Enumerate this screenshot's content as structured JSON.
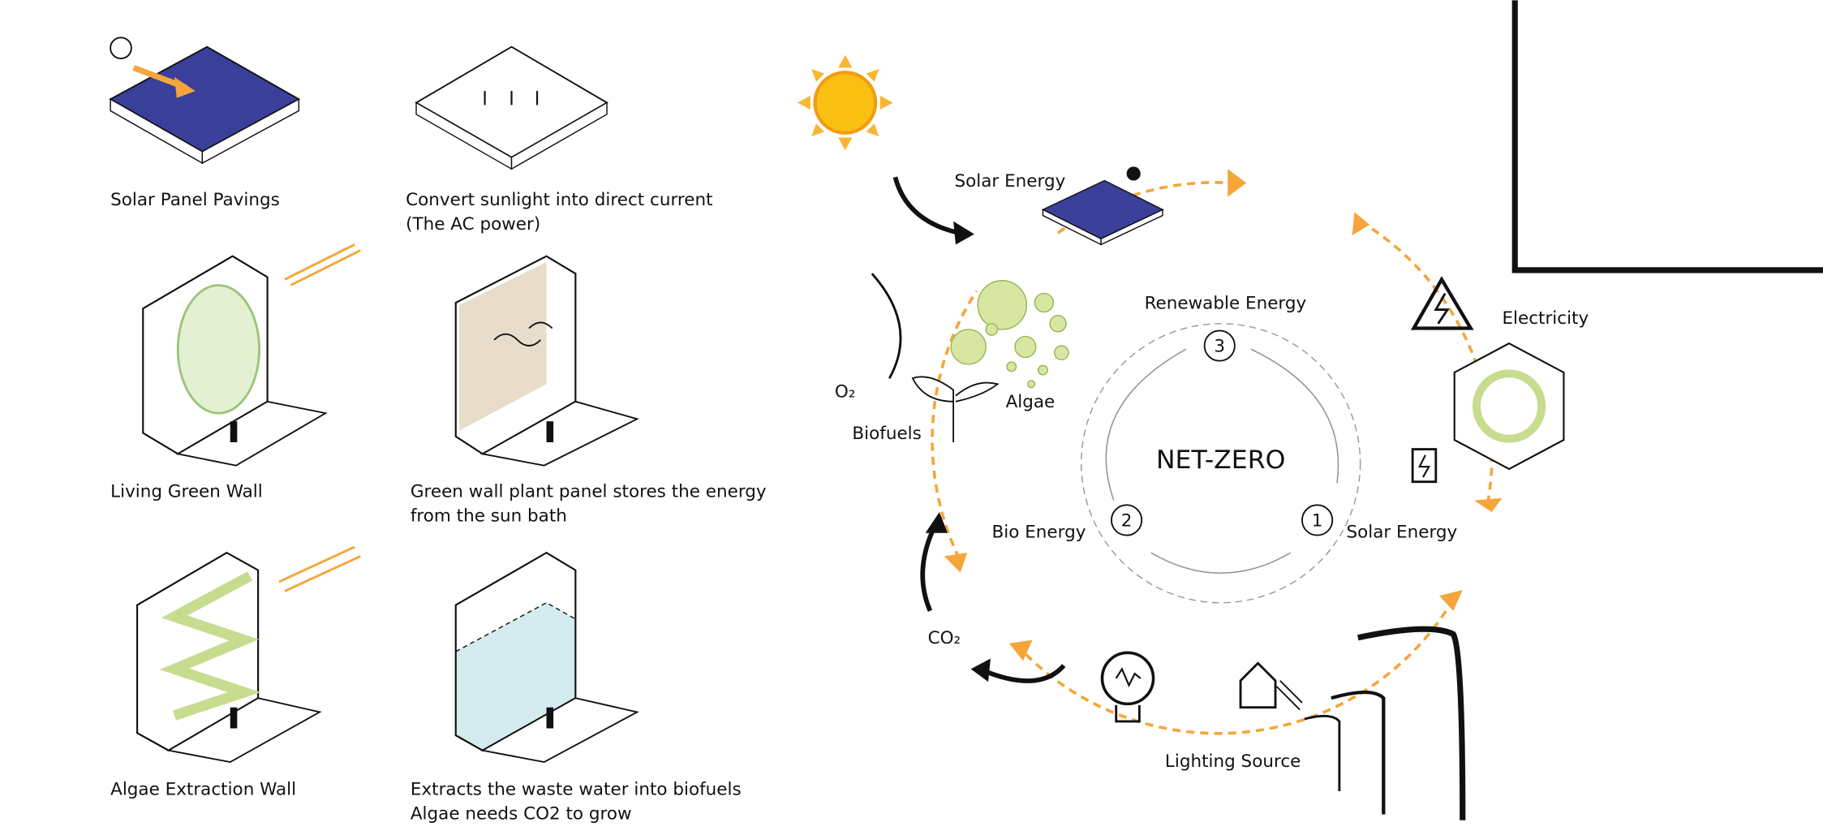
{
  "panels": [
    {
      "label": "Solar Panel Pavings",
      "description": [
        "Convert sunlight into direct current",
        "(The AC power)"
      ]
    },
    {
      "label": "Living Green Wall",
      "description": [
        "Green wall plant panel stores the energy",
        "from the sun bath"
      ]
    },
    {
      "label": "Algae Extraction Wall",
      "description": [
        "Extracts the waste water into biofuels",
        "Algae needs CO2 to grow"
      ]
    }
  ],
  "cycle": {
    "center": "NET-ZERO",
    "stages": [
      {
        "number": "3",
        "label": "Renewable Energy"
      },
      {
        "number": "2",
        "label": "Bio Energy"
      },
      {
        "number": "1",
        "label": "Solar Energy"
      }
    ]
  },
  "outer_labels": {
    "solar": "Solar Energy",
    "electricity": "Electricity",
    "lighting": "Lighting Source",
    "co2": "CO₂",
    "o2": "O₂",
    "biofuels": "Biofuels",
    "algae": "Algae"
  }
}
